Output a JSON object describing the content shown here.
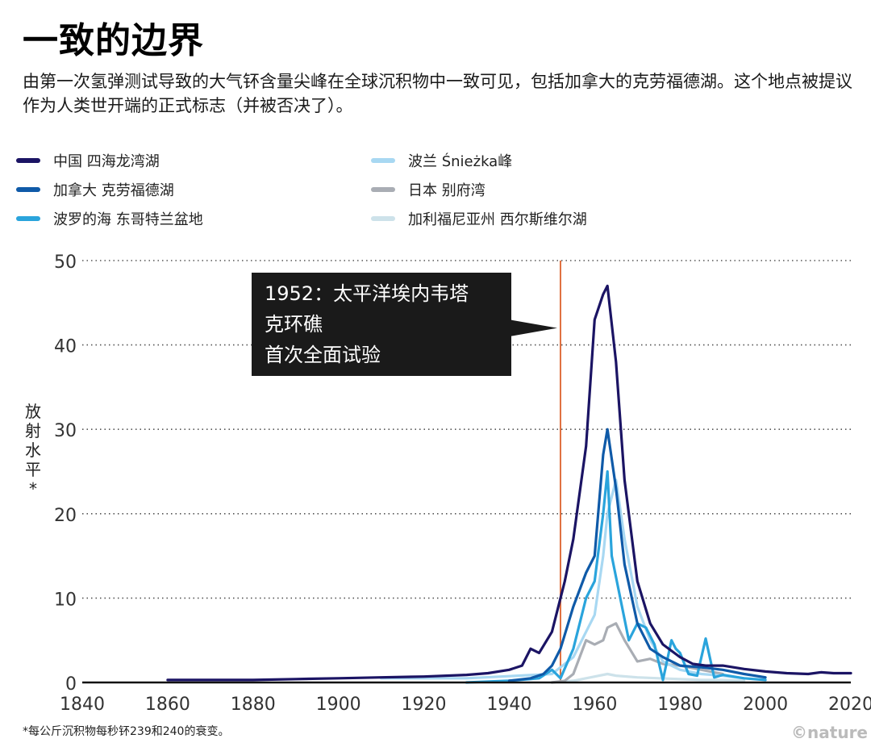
{
  "title": "一致的边界",
  "subtitle": "由第一次氢弹测试导致的大气钚含量尖峰在全球沉积物中一致可见，包括加拿大的克劳福德湖。这个地点被提议作为人类世开端的正式标志（并被否决了）。",
  "footnote": "*每公斤沉积物每秒钚239和240的衰变。",
  "credit": "©nature",
  "colors": {
    "vline": "#e07040",
    "grid": "#555555",
    "axis": "#111111",
    "annotation_bg": "#1a1a1a",
    "annotation_text": "#ffffff"
  },
  "chart_data": {
    "type": "line",
    "ylabel": "放射水平*",
    "xlabel": "",
    "xlim": [
      1840,
      2020
    ],
    "ylim": [
      0,
      50
    ],
    "xticks": [
      1840,
      1860,
      1880,
      1900,
      1920,
      1940,
      1960,
      1980,
      2000,
      2020
    ],
    "yticks": [
      0,
      10,
      20,
      30,
      40,
      50
    ],
    "grid": "horizontal dotted",
    "legend_position": "top",
    "vline": 1952,
    "annotation": {
      "x": 1952,
      "y": 42,
      "line1": "1952：太平洋埃内韦塔",
      "line2": "克环礁",
      "line3": "首次全面试验"
    },
    "series": [
      {
        "name": "中国 四海龙湾湖",
        "color": "#1b1464",
        "x": [
          1860,
          1870,
          1880,
          1890,
          1900,
          1910,
          1920,
          1930,
          1935,
          1940,
          1943,
          1945,
          1947,
          1950,
          1953,
          1955,
          1958,
          1960,
          1962,
          1963,
          1965,
          1967,
          1970,
          1973,
          1976,
          1980,
          1983,
          1986,
          1990,
          1995,
          2000,
          2005,
          2010,
          2013,
          2016,
          2020
        ],
        "y": [
          0.3,
          0.3,
          0.3,
          0.4,
          0.5,
          0.6,
          0.7,
          0.9,
          1.1,
          1.5,
          2.0,
          4.0,
          3.5,
          6.0,
          12.0,
          17.0,
          28.0,
          43.0,
          46.0,
          47.0,
          38.0,
          24.0,
          12.0,
          7.0,
          4.5,
          3.0,
          2.2,
          2.0,
          2.0,
          1.6,
          1.3,
          1.1,
          1.0,
          1.2,
          1.1,
          1.1
        ]
      },
      {
        "name": "加拿大 克劳福德湖",
        "color": "#0f5aa8",
        "x": [
          1940,
          1945,
          1948,
          1950,
          1952,
          1955,
          1958,
          1960,
          1962,
          1963,
          1965,
          1967,
          1970,
          1973,
          1976,
          1980,
          1985,
          1990,
          1995,
          2000
        ],
        "y": [
          0.2,
          0.5,
          1.0,
          2.0,
          4.0,
          9.0,
          13.0,
          15.0,
          27.0,
          30.0,
          23.0,
          14.0,
          7.0,
          4.0,
          3.0,
          2.0,
          1.8,
          1.5,
          1.0,
          0.6
        ]
      },
      {
        "name": "波罗的海 东哥特兰盆地",
        "color": "#2aa4dc",
        "x": [
          1930,
          1940,
          1947,
          1950,
          1952,
          1955,
          1958,
          1960,
          1962,
          1963,
          1964,
          1966,
          1968,
          1970,
          1972,
          1974,
          1976,
          1978,
          1979,
          1980,
          1982,
          1984,
          1986,
          1988,
          1990,
          1995,
          2000
        ],
        "y": [
          0,
          0.2,
          0.5,
          1.5,
          0.5,
          4.0,
          10.0,
          12.0,
          20.0,
          25.0,
          15.0,
          10.0,
          5.0,
          7.0,
          6.5,
          4.5,
          0.3,
          5.0,
          4.0,
          3.5,
          1.0,
          0.8,
          5.2,
          0.6,
          0.9,
          0.5,
          0.3
        ]
      },
      {
        "name": "波兰 Śnieżka峰",
        "color": "#a8d8f2",
        "x": [
          1910,
          1930,
          1950,
          1955,
          1958,
          1960,
          1962,
          1963,
          1965,
          1967,
          1970,
          1973,
          1976,
          1980,
          1985,
          1990,
          1995
        ],
        "y": [
          0.5,
          0.5,
          1.0,
          3.0,
          6.0,
          8.0,
          15.0,
          20.0,
          24.0,
          17.0,
          9.0,
          5.0,
          2.5,
          1.5,
          1.0,
          0.8,
          0.5
        ]
      },
      {
        "name": "日本 别府湾",
        "color": "#a9adb4",
        "x": [
          1950,
          1953,
          1955,
          1958,
          1960,
          1962,
          1963,
          1965,
          1967,
          1970,
          1973,
          1976,
          1980,
          1985,
          1990
        ],
        "y": [
          0,
          0.2,
          1.0,
          5.0,
          4.5,
          5.0,
          6.5,
          7.0,
          5.0,
          2.5,
          2.8,
          2.2,
          2.0,
          1.5,
          1.0
        ]
      },
      {
        "name": "加利福尼亚州 西尔斯维尔湖",
        "color": "#cde2ea",
        "x": [
          1950,
          1955,
          1958,
          1960,
          1963,
          1965,
          1970,
          1975,
          1980,
          1985,
          1990,
          1995
        ],
        "y": [
          0,
          0.2,
          0.5,
          0.7,
          1.0,
          0.8,
          0.6,
          0.5,
          0.4,
          0.3,
          0.3,
          0.2
        ]
      }
    ]
  }
}
